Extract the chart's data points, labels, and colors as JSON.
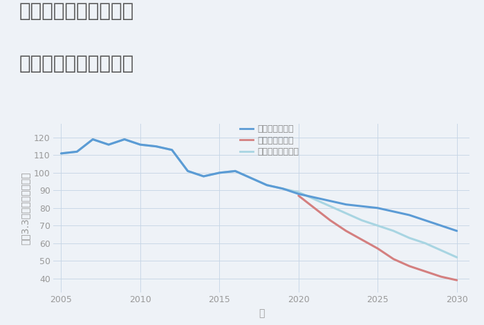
{
  "title_line1": "兵庫県加西市鎮岩町の",
  "title_line2": "中古戸建ての価格推移",
  "xlabel": "年",
  "ylabel": "坪（3.3㎡）単価（万円）",
  "background_color": "#eef2f7",
  "plot_bg_color": "#eef2f7",
  "ylim": [
    32,
    128
  ],
  "xlim": [
    2004.5,
    2030.8
  ],
  "yticks": [
    40,
    50,
    60,
    70,
    80,
    90,
    100,
    110,
    120
  ],
  "xticks": [
    2005,
    2010,
    2015,
    2020,
    2025,
    2030
  ],
  "good_scenario": {
    "label": "グッドシナリオ",
    "color": "#5b9bd5",
    "linewidth": 2.2,
    "x": [
      2005,
      2006,
      2007,
      2008,
      2009,
      2010,
      2011,
      2012,
      2013,
      2014,
      2015,
      2016,
      2017,
      2018,
      2019,
      2020,
      2021,
      2022,
      2023,
      2024,
      2025,
      2026,
      2027,
      2028,
      2029,
      2030
    ],
    "y": [
      111,
      112,
      119,
      116,
      119,
      116,
      115,
      113,
      101,
      98,
      100,
      101,
      97,
      93,
      91,
      88,
      86,
      84,
      82,
      81,
      80,
      78,
      76,
      73,
      70,
      67
    ]
  },
  "bad_scenario": {
    "label": "バッドシナリオ",
    "color": "#d47f7f",
    "linewidth": 2.2,
    "x": [
      2020,
      2021,
      2022,
      2023,
      2024,
      2025,
      2026,
      2027,
      2028,
      2029,
      2030
    ],
    "y": [
      87,
      80,
      73,
      67,
      62,
      57,
      51,
      47,
      44,
      41,
      39
    ]
  },
  "normal_scenario": {
    "label": "ノーマルシナリオ",
    "color": "#a8d5e2",
    "linewidth": 2.2,
    "x": [
      2005,
      2006,
      2007,
      2008,
      2009,
      2010,
      2011,
      2012,
      2013,
      2014,
      2015,
      2016,
      2017,
      2018,
      2019,
      2020,
      2021,
      2022,
      2023,
      2024,
      2025,
      2026,
      2027,
      2028,
      2029,
      2030
    ],
    "y": [
      111,
      112,
      119,
      116,
      119,
      116,
      115,
      113,
      101,
      98,
      100,
      101,
      97,
      93,
      91,
      89,
      85,
      81,
      77,
      73,
      70,
      67,
      63,
      60,
      56,
      52
    ]
  },
  "legend_fontsize": 9,
  "title_fontsize": 20,
  "axis_label_fontsize": 10,
  "tick_fontsize": 9,
  "grid_color": "#c5d5e5",
  "grid_alpha": 0.9
}
